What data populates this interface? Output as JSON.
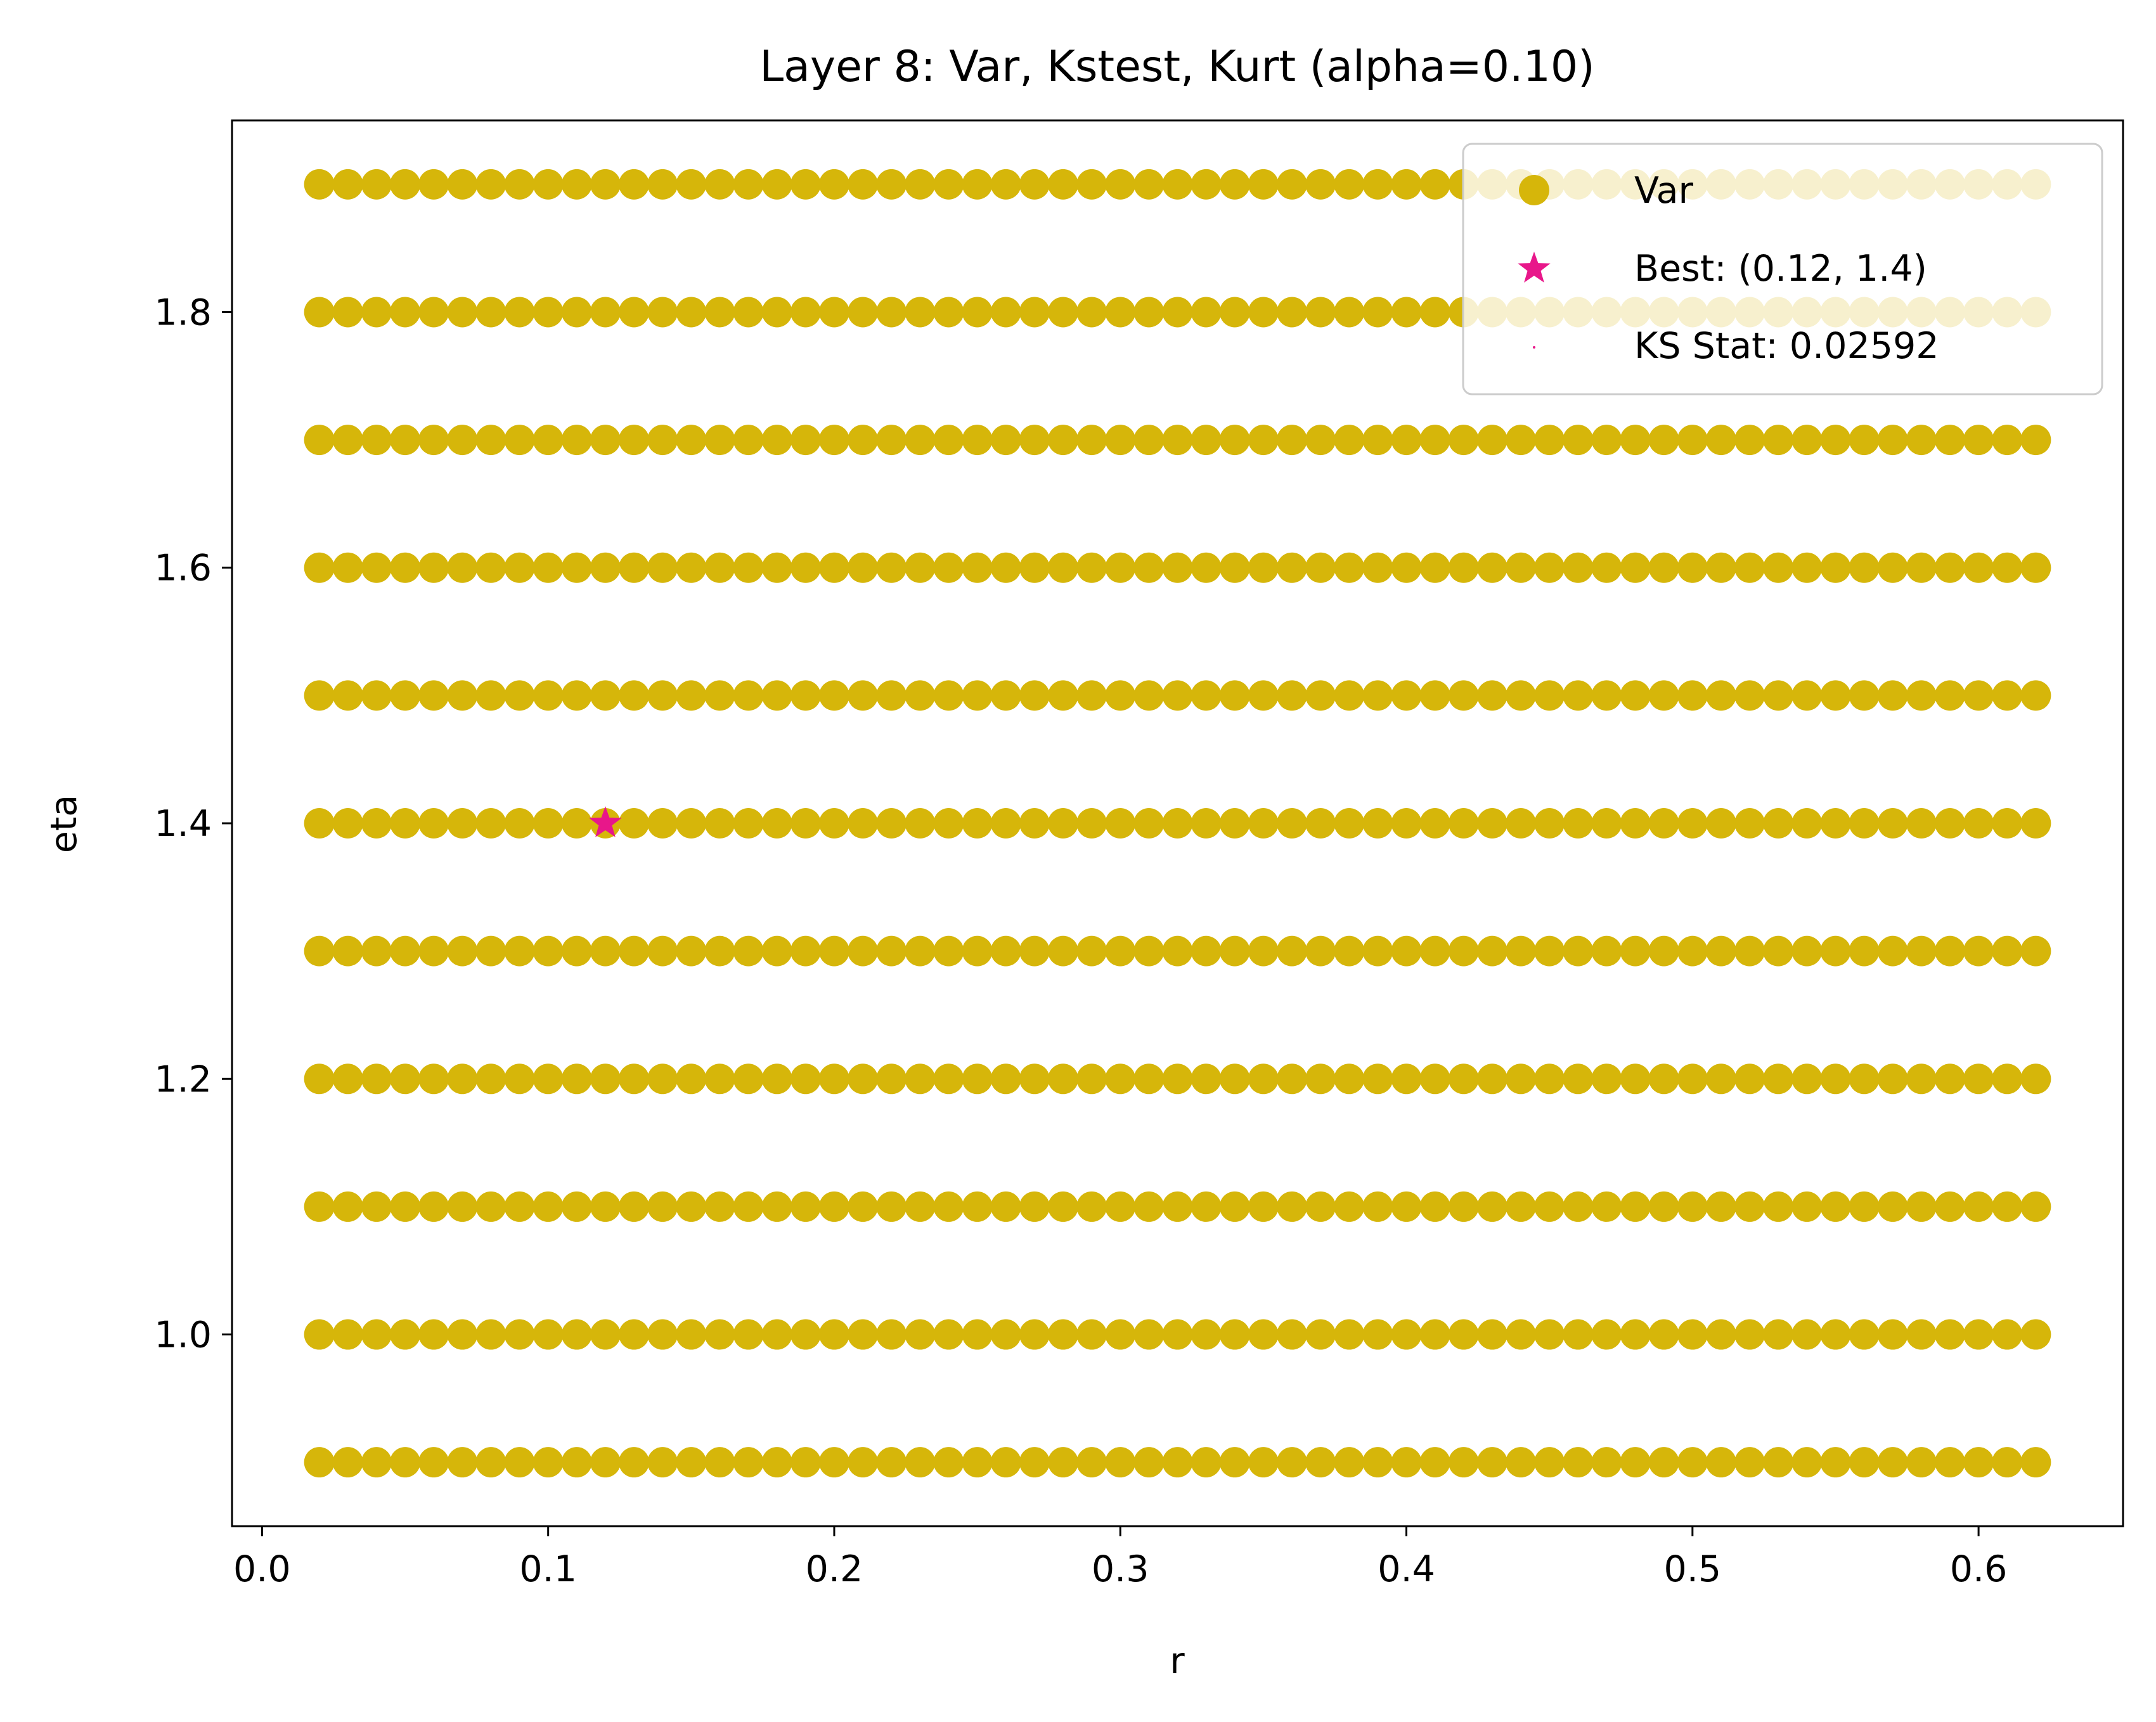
{
  "chart_data": {
    "type": "scatter",
    "title": "Layer 8: Var, Kstest, Kurt (alpha=0.10)",
    "xlabel": "r",
    "ylabel": "eta",
    "xlim": [
      -0.0105,
      0.6505
    ],
    "ylim": [
      0.85,
      1.95
    ],
    "xticks": [
      0.0,
      0.1,
      0.2,
      0.3,
      0.4,
      0.5,
      0.6
    ],
    "xtick_labels": [
      "0.0",
      "0.1",
      "0.2",
      "0.3",
      "0.4",
      "0.5",
      "0.6"
    ],
    "yticks": [
      1.0,
      1.2,
      1.4,
      1.6,
      1.8
    ],
    "ytick_labels": [
      "1.0",
      "1.2",
      "1.4",
      "1.6",
      "1.8"
    ],
    "grid": false,
    "legend_position": "top-right",
    "series": [
      {
        "name": "Var",
        "marker": "circle",
        "color": "#d6b60a",
        "grid_points": {
          "x_start": 0.02,
          "x_end": 0.62,
          "x_step": 0.01,
          "y_values": [
            0.9,
            1.0,
            1.1,
            1.2,
            1.3,
            1.4,
            1.5,
            1.6,
            1.7,
            1.8,
            1.9
          ]
        }
      },
      {
        "name": "Best: (0.12, 1.4)",
        "marker": "star",
        "color": "#e8178a",
        "points": [
          {
            "x": 0.12,
            "y": 1.4
          }
        ]
      },
      {
        "name": "KS Stat: 0.02592",
        "marker": "point",
        "color": "#e8178a",
        "points": []
      }
    ]
  }
}
